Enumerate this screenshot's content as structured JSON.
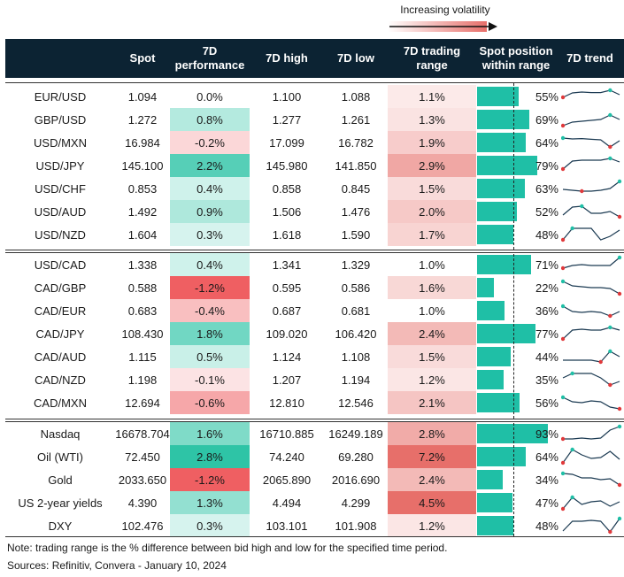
{
  "legend": {
    "label": "Increasing volatility"
  },
  "headers": {
    "pair": "",
    "spot": "Spot",
    "perf": "7D performance",
    "high": "7D high",
    "low": "7D low",
    "range": "7D trading range",
    "position": "Spot position within range",
    "trend": "7D trend"
  },
  "colors": {
    "header_bg": "#0c2333",
    "bar_teal": "#1fbfa6",
    "positive_perf": "#2ec4a6",
    "negative_perf": "#ef5f62",
    "range_heat": "#e76f6a"
  },
  "rows": [
    {
      "pair": "EUR/USD",
      "spot": "1.094",
      "perf": "0.0%",
      "perf_val": 0.0,
      "high": "1.100",
      "low": "1.088",
      "range": "1.1%",
      "range_val": 1.1,
      "position": "55%",
      "position_val": 55,
      "trend": [
        0.45,
        0.7,
        0.75,
        0.72,
        0.72,
        0.85,
        0.6
      ]
    },
    {
      "pair": "GBP/USD",
      "spot": "1.272",
      "perf": "0.8%",
      "perf_val": 0.8,
      "high": "1.277",
      "low": "1.261",
      "range": "1.3%",
      "range_val": 1.3,
      "position": "69%",
      "position_val": 69,
      "trend": [
        0.15,
        0.35,
        0.4,
        0.45,
        0.5,
        0.75,
        0.5
      ]
    },
    {
      "pair": "USD/MXN",
      "spot": "16.984",
      "perf": "-0.2%",
      "perf_val": -0.2,
      "high": "17.099",
      "low": "16.782",
      "range": "1.9%",
      "range_val": 1.9,
      "position": "64%",
      "position_val": 64,
      "trend": [
        0.75,
        0.7,
        0.72,
        0.68,
        0.65,
        0.25,
        0.6
      ]
    },
    {
      "pair": "USD/JPY",
      "spot": "145.100",
      "perf": "2.2%",
      "perf_val": 2.2,
      "high": "145.980",
      "low": "141.850",
      "range": "2.9%",
      "range_val": 2.9,
      "position": "79%",
      "position_val": 79,
      "trend": [
        0.3,
        0.75,
        0.8,
        0.8,
        0.8,
        0.9,
        0.7
      ]
    },
    {
      "pair": "USD/CHF",
      "spot": "0.853",
      "perf": "0.4%",
      "perf_val": 0.4,
      "high": "0.858",
      "low": "0.845",
      "range": "1.5%",
      "range_val": 1.5,
      "position": "63%",
      "position_val": 63,
      "trend": [
        0.45,
        0.4,
        0.35,
        0.35,
        0.4,
        0.5,
        0.9
      ]
    },
    {
      "pair": "USD/AUD",
      "spot": "1.492",
      "perf": "0.9%",
      "perf_val": 0.9,
      "high": "1.506",
      "low": "1.476",
      "range": "2.0%",
      "range_val": 2.0,
      "position": "52%",
      "position_val": 52,
      "trend": [
        0.3,
        0.75,
        0.8,
        0.4,
        0.4,
        0.5,
        0.2
      ]
    },
    {
      "pair": "USD/NZD",
      "spot": "1.604",
      "perf": "0.3%",
      "perf_val": 0.3,
      "high": "1.618",
      "low": "1.590",
      "range": "1.7%",
      "range_val": 1.7,
      "position": "48%",
      "position_val": 48,
      "trend": [
        0.2,
        0.85,
        0.85,
        0.85,
        0.2,
        0.4,
        0.75
      ]
    },
    {
      "pair": "USD/CAD",
      "spot": "1.338",
      "perf": "0.4%",
      "perf_val": 0.4,
      "high": "1.341",
      "low": "1.329",
      "range": "1.0%",
      "range_val": 1.0,
      "position": "71%",
      "position_val": 71,
      "trend": [
        0.3,
        0.45,
        0.5,
        0.45,
        0.45,
        0.45,
        0.9
      ]
    },
    {
      "pair": "CAD/GBP",
      "spot": "0.588",
      "perf": "-1.2%",
      "perf_val": -1.2,
      "high": "0.595",
      "low": "0.586",
      "range": "1.6%",
      "range_val": 1.6,
      "position": "22%",
      "position_val": 22,
      "trend": [
        0.85,
        0.6,
        0.55,
        0.5,
        0.5,
        0.45,
        0.15
      ]
    },
    {
      "pair": "CAD/EUR",
      "spot": "0.683",
      "perf": "-0.4%",
      "perf_val": -0.4,
      "high": "0.687",
      "low": "0.681",
      "range": "1.0%",
      "range_val": 1.0,
      "position": "36%",
      "position_val": 36,
      "trend": [
        0.75,
        0.45,
        0.4,
        0.45,
        0.4,
        0.2,
        0.45
      ]
    },
    {
      "pair": "CAD/JPY",
      "spot": "108.430",
      "perf": "1.8%",
      "perf_val": 1.8,
      "high": "109.020",
      "low": "106.420",
      "range": "2.4%",
      "range_val": 2.4,
      "position": "77%",
      "position_val": 77,
      "trend": [
        0.2,
        0.7,
        0.75,
        0.7,
        0.7,
        0.85,
        0.7
      ]
    },
    {
      "pair": "CAD/AUD",
      "spot": "1.115",
      "perf": "0.5%",
      "perf_val": 0.5,
      "high": "1.124",
      "low": "1.108",
      "range": "1.5%",
      "range_val": 1.5,
      "position": "44%",
      "position_val": 44,
      "trend": [
        0.3,
        0.3,
        0.3,
        0.3,
        0.2,
        0.8,
        0.5
      ]
    },
    {
      "pair": "CAD/NZD",
      "spot": "1.198",
      "perf": "-0.1%",
      "perf_val": -0.1,
      "high": "1.207",
      "low": "1.194",
      "range": "1.2%",
      "range_val": 1.2,
      "position": "35%",
      "position_val": 35,
      "trend": [
        0.6,
        0.85,
        0.85,
        0.85,
        0.6,
        0.2,
        0.4
      ]
    },
    {
      "pair": "CAD/MXN",
      "spot": "12.694",
      "perf": "-0.6%",
      "perf_val": -0.6,
      "high": "12.810",
      "low": "12.546",
      "range": "2.1%",
      "range_val": 2.1,
      "position": "56%",
      "position_val": 56,
      "trend": [
        0.8,
        0.55,
        0.5,
        0.6,
        0.55,
        0.25,
        0.15
      ]
    },
    {
      "pair": "Nasdaq",
      "spot": "16678.704",
      "perf": "1.6%",
      "perf_val": 1.6,
      "high": "16710.885",
      "low": "16249.189",
      "range": "2.8%",
      "range_val": 2.8,
      "position": "93%",
      "position_val": 93,
      "trend": [
        0.2,
        0.2,
        0.25,
        0.2,
        0.25,
        0.7,
        0.9
      ]
    },
    {
      "pair": "Oil (WTI)",
      "spot": "72.450",
      "perf": "2.8%",
      "perf_val": 2.8,
      "high": "74.240",
      "low": "69.280",
      "range": "7.2%",
      "range_val": 7.2,
      "position": "64%",
      "position_val": 64,
      "trend": [
        0.15,
        0.9,
        0.6,
        0.4,
        0.45,
        0.8,
        0.35
      ]
    },
    {
      "pair": "Gold",
      "spot": "2033.650",
      "perf": "-1.2%",
      "perf_val": -1.2,
      "high": "2065.890",
      "low": "2016.690",
      "range": "2.4%",
      "range_val": 2.4,
      "position": "34%",
      "position_val": 34,
      "trend": [
        0.85,
        0.8,
        0.6,
        0.6,
        0.5,
        0.55,
        0.2
      ]
    },
    {
      "pair": "US 2-year yields",
      "spot": "4.390",
      "perf": "1.3%",
      "perf_val": 1.3,
      "high": "4.494",
      "low": "4.299",
      "range": "4.5%",
      "range_val": 4.5,
      "position": "47%",
      "position_val": 47,
      "trend": [
        0.15,
        0.8,
        0.4,
        0.55,
        0.6,
        0.3,
        0.55
      ]
    },
    {
      "pair": "DXY",
      "spot": "102.476",
      "perf": "0.3%",
      "perf_val": 0.3,
      "high": "103.101",
      "low": "101.908",
      "range": "1.2%",
      "range_val": 1.2,
      "position": "48%",
      "position_val": 48,
      "trend": [
        0.2,
        0.75,
        0.75,
        0.8,
        0.75,
        0.15,
        0.9
      ]
    }
  ],
  "footer": {
    "note": "Note: trading range is the % difference between bid high and low for the specified time period.",
    "sources": "Sources: Refinitiv, Convera - January 10, 2024"
  },
  "chart_data": {
    "type": "table",
    "columns": [
      "",
      "Spot",
      "7D performance",
      "7D high",
      "7D low",
      "7D trading range",
      "Spot position within range",
      "7D trend"
    ],
    "groups": [
      [
        "EUR/USD",
        "GBP/USD",
        "USD/MXN",
        "USD/JPY",
        "USD/CHF",
        "USD/AUD",
        "USD/NZD"
      ],
      [
        "USD/CAD",
        "CAD/GBP",
        "CAD/EUR",
        "CAD/JPY",
        "CAD/AUD",
        "CAD/NZD",
        "CAD/MXN"
      ],
      [
        "Nasdaq",
        "Oil (WTI)",
        "Gold",
        "US 2-year yields",
        "DXY"
      ]
    ],
    "series": [
      {
        "name": "7D performance",
        "values": [
          0.0,
          0.8,
          -0.2,
          2.2,
          0.4,
          0.9,
          0.3,
          0.4,
          -1.2,
          -0.4,
          1.8,
          0.5,
          -0.1,
          -0.6,
          1.6,
          2.8,
          -1.2,
          1.3,
          0.3
        ]
      },
      {
        "name": "7D trading range",
        "values": [
          1.1,
          1.3,
          1.9,
          2.9,
          1.5,
          2.0,
          1.7,
          1.0,
          1.6,
          1.0,
          2.4,
          1.5,
          1.2,
          2.1,
          2.8,
          7.2,
          2.4,
          4.5,
          1.2
        ]
      },
      {
        "name": "Spot position within range",
        "values": [
          55,
          69,
          64,
          79,
          63,
          52,
          48,
          71,
          22,
          36,
          77,
          44,
          35,
          56,
          93,
          64,
          34,
          47,
          48
        ]
      }
    ]
  }
}
